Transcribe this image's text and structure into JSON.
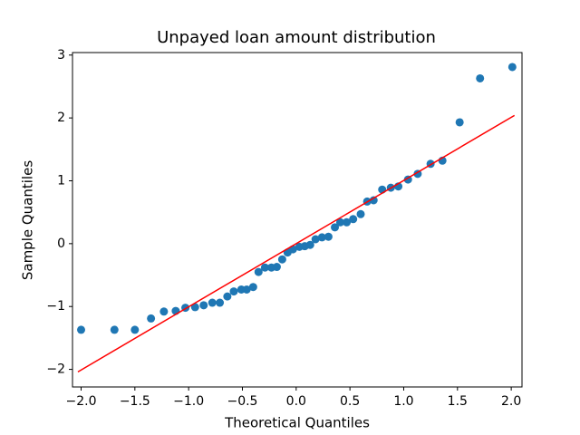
{
  "chart_data": {
    "type": "scatter",
    "title": "Unpayed loan amount distribution",
    "x_label": "Theoretical Quantiles",
    "y_label": "Sample Quantiles",
    "series": [
      {
        "color": "#1f77b4",
        "x": [
          -2.0,
          -1.69,
          -1.5,
          -1.35,
          -1.23,
          -1.12,
          -1.03,
          -0.94,
          -0.86,
          -0.78,
          -0.71,
          -0.64,
          -0.58,
          -0.51,
          -0.46,
          -0.4,
          -0.35,
          -0.29,
          -0.23,
          -0.18,
          -0.13,
          -0.08,
          -0.03,
          0.03,
          0.08,
          0.13,
          0.18,
          0.24,
          0.3,
          0.36,
          0.41,
          0.47,
          0.53,
          0.6,
          0.66,
          0.72,
          0.8,
          0.88,
          0.95,
          1.04,
          1.13,
          1.25,
          1.36,
          1.52,
          1.71,
          2.01
        ],
        "values": [
          -1.37,
          -1.37,
          -1.37,
          -1.19,
          -1.08,
          -1.07,
          -1.02,
          -1.01,
          -0.98,
          -0.94,
          -0.94,
          -0.84,
          -0.76,
          -0.73,
          -0.73,
          -0.69,
          -0.45,
          -0.38,
          -0.38,
          -0.37,
          -0.25,
          -0.14,
          -0.09,
          -0.05,
          -0.04,
          -0.02,
          0.07,
          0.1,
          0.11,
          0.26,
          0.34,
          0.34,
          0.39,
          0.47,
          0.67,
          0.69,
          0.86,
          0.89,
          0.91,
          1.02,
          1.11,
          1.27,
          1.32,
          1.93,
          2.63,
          2.81
        ]
      }
    ],
    "reference_line": {
      "color": "#ff0000",
      "x": [
        -2.03,
        2.03
      ],
      "values": [
        -2.04,
        2.04
      ]
    },
    "xlim": [
      -2.08,
      2.1
    ],
    "ylim": [
      -2.28,
      3.04
    ],
    "xticks": [
      {
        "value": -2,
        "label": "−2.0"
      },
      {
        "value": -1.5,
        "label": "−1.5"
      },
      {
        "value": -1,
        "label": "−1.0"
      },
      {
        "value": -0.5,
        "label": "−0.5"
      },
      {
        "value": 0,
        "label": "0.0"
      },
      0.5,
      {
        "value": 1,
        "label": "1.0"
      },
      1.5,
      {
        "value": 2,
        "label": "2.0"
      }
    ],
    "yticks": [
      {
        "value": -2,
        "label": "−2"
      },
      {
        "value": -1,
        "label": "−1"
      },
      0,
      1,
      2,
      3
    ]
  }
}
